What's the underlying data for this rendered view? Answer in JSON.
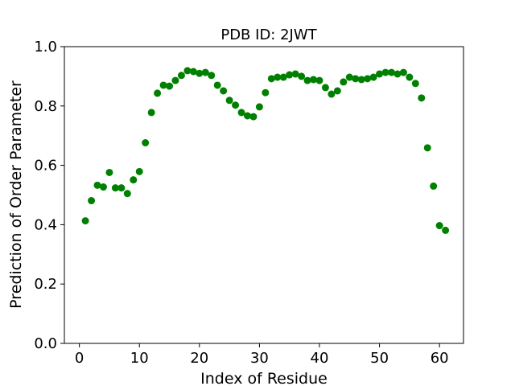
{
  "chart_data": {
    "type": "scatter",
    "title": "PDB ID: 2JWT",
    "xlabel": "Index of Residue",
    "ylabel": "Prediction of Order Parameter",
    "xlim": [
      -2.5,
      64
    ],
    "ylim": [
      0.0,
      1.0
    ],
    "xticks": [
      0,
      10,
      20,
      30,
      40,
      50,
      60
    ],
    "yticks": [
      0.0,
      0.2,
      0.4,
      0.6,
      0.8,
      1.0
    ],
    "xtick_labels": [
      "0",
      "10",
      "20",
      "30",
      "40",
      "50",
      "60"
    ],
    "ytick_labels": [
      "0.0",
      "0.2",
      "0.4",
      "0.6",
      "0.8",
      "1.0"
    ],
    "grid": false,
    "marker_color": "#008000",
    "series": [
      {
        "x": [
          1,
          2,
          3,
          4,
          5,
          6,
          7,
          8,
          9,
          10,
          11,
          12,
          13,
          14,
          15,
          16,
          17,
          18,
          19,
          20,
          21,
          22,
          23,
          24,
          25,
          26,
          27,
          28,
          29,
          30,
          31,
          32,
          33,
          34,
          35,
          36,
          37,
          38,
          39,
          40,
          41,
          42,
          43,
          44,
          45,
          46,
          47,
          48,
          49,
          50,
          51,
          52,
          53,
          54,
          55,
          56,
          57,
          58,
          59,
          60,
          61
        ],
        "y": [
          0.413,
          0.481,
          0.533,
          0.527,
          0.576,
          0.524,
          0.524,
          0.505,
          0.551,
          0.579,
          0.676,
          0.778,
          0.843,
          0.87,
          0.867,
          0.886,
          0.903,
          0.919,
          0.916,
          0.91,
          0.913,
          0.903,
          0.87,
          0.851,
          0.819,
          0.803,
          0.778,
          0.767,
          0.764,
          0.797,
          0.845,
          0.892,
          0.897,
          0.897,
          0.905,
          0.908,
          0.9,
          0.886,
          0.889,
          0.886,
          0.862,
          0.84,
          0.851,
          0.881,
          0.897,
          0.892,
          0.889,
          0.892,
          0.897,
          0.908,
          0.913,
          0.913,
          0.908,
          0.913,
          0.897,
          0.876,
          0.827,
          0.659,
          0.53,
          0.397,
          0.381
        ]
      }
    ]
  }
}
